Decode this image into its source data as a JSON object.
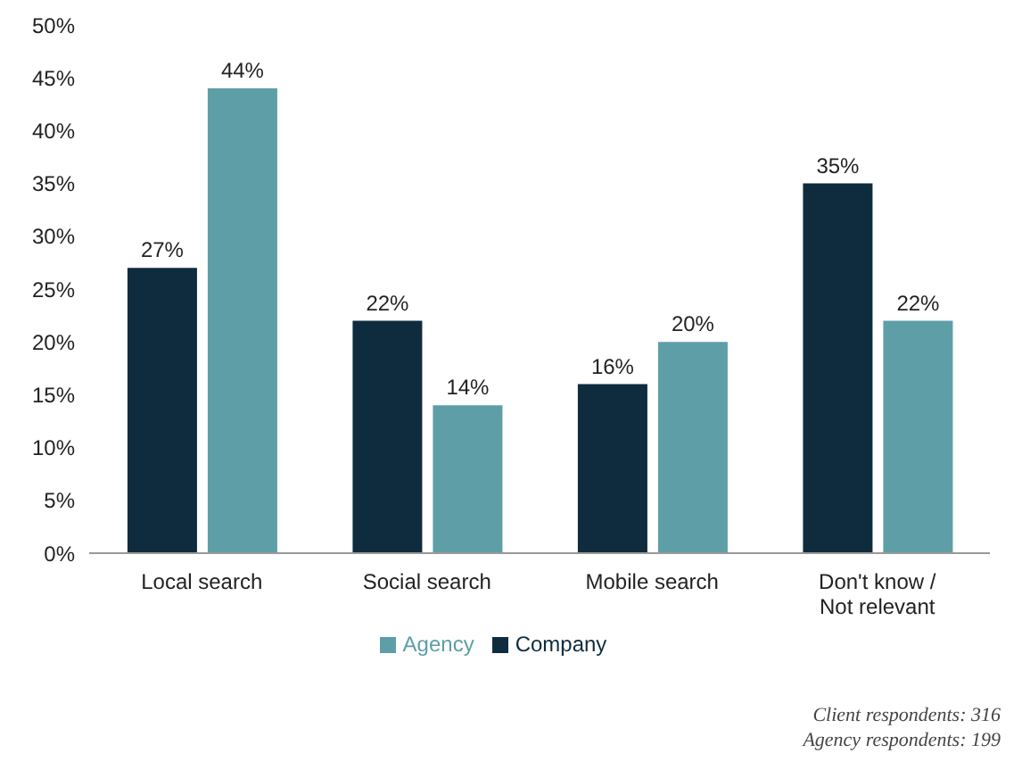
{
  "chart_data": {
    "type": "bar",
    "categories": [
      "Local search",
      "Social search",
      "Mobile search",
      "Don't know / Not relevant"
    ],
    "series": [
      {
        "name": "Company",
        "color": "#0e2c3e",
        "values": [
          27,
          22,
          16,
          35
        ],
        "value_labels": [
          "27%",
          "22%",
          "16%",
          "35%"
        ]
      },
      {
        "name": "Agency",
        "color": "#5e9ea7",
        "values": [
          44,
          14,
          20,
          22
        ],
        "value_labels": [
          "44%",
          "14%",
          "20%",
          "22%"
        ]
      }
    ],
    "ylim": [
      0,
      50
    ],
    "yticks": [
      {
        "value": 0,
        "label": "0%"
      },
      {
        "value": 5,
        "label": "5%"
      },
      {
        "value": 10,
        "label": "10%"
      },
      {
        "value": 15,
        "label": "15%"
      },
      {
        "value": 20,
        "label": "20%"
      },
      {
        "value": 25,
        "label": "25%"
      },
      {
        "value": 30,
        "label": "30%"
      },
      {
        "value": 35,
        "label": "35%"
      },
      {
        "value": 40,
        "label": "40%"
      },
      {
        "value": 45,
        "label": "45%"
      },
      {
        "value": 50,
        "label": "50%"
      }
    ],
    "grid": false,
    "legend": "bottom",
    "annotations": [
      "Client respondents: 316",
      "Agency respondents: 199"
    ]
  }
}
